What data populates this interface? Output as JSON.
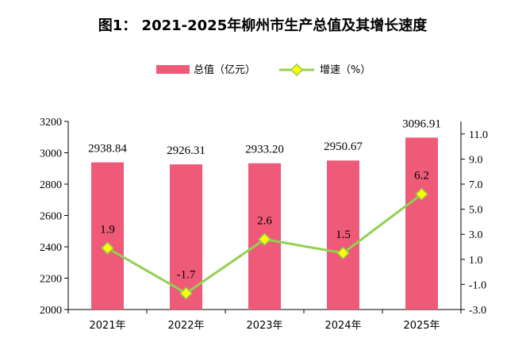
{
  "chart_data": {
    "type": "bar",
    "title": "图1：  2021-2025年柳州市生产总值及其增长速度",
    "categories": [
      "2021年",
      "2022年",
      "2023年",
      "2024年",
      "2025年"
    ],
    "series": [
      {
        "name": "总值（亿元）",
        "type": "bar",
        "axis": "left",
        "values": [
          2938.84,
          2926.31,
          2933.2,
          2950.67,
          3096.91
        ],
        "labels": [
          "2938.84",
          "2926.31",
          "2933.20",
          "2950.67",
          "3096.91"
        ],
        "color": "#ef5a78"
      },
      {
        "name": "增速（%）",
        "type": "line",
        "axis": "right",
        "values": [
          1.9,
          -1.7,
          2.6,
          1.5,
          6.2
        ],
        "labels": [
          "1.9",
          "-1.7",
          "2.6",
          "1.5",
          "6.2"
        ],
        "color": "#92d050",
        "marker_color": "#ffff00"
      }
    ],
    "y_left": {
      "min": 2000,
      "max": 3200,
      "ticks": [
        2000,
        2200,
        2400,
        2600,
        2800,
        3000,
        3200
      ],
      "tick_labels": [
        "2000",
        "2200",
        "2400",
        "2600",
        "2800",
        "3000",
        "3200"
      ]
    },
    "y_right": {
      "min": -3.0,
      "max": 12.0,
      "ticks": [
        -3.0,
        -1.0,
        1.0,
        3.0,
        5.0,
        7.0,
        9.0,
        11.0
      ],
      "tick_labels": [
        "-3.0",
        "-1.0",
        "1.0",
        "3.0",
        "5.0",
        "7.0",
        "9.0",
        "11.0"
      ]
    },
    "legend": {
      "position": "top-center"
    },
    "grid": false
  }
}
